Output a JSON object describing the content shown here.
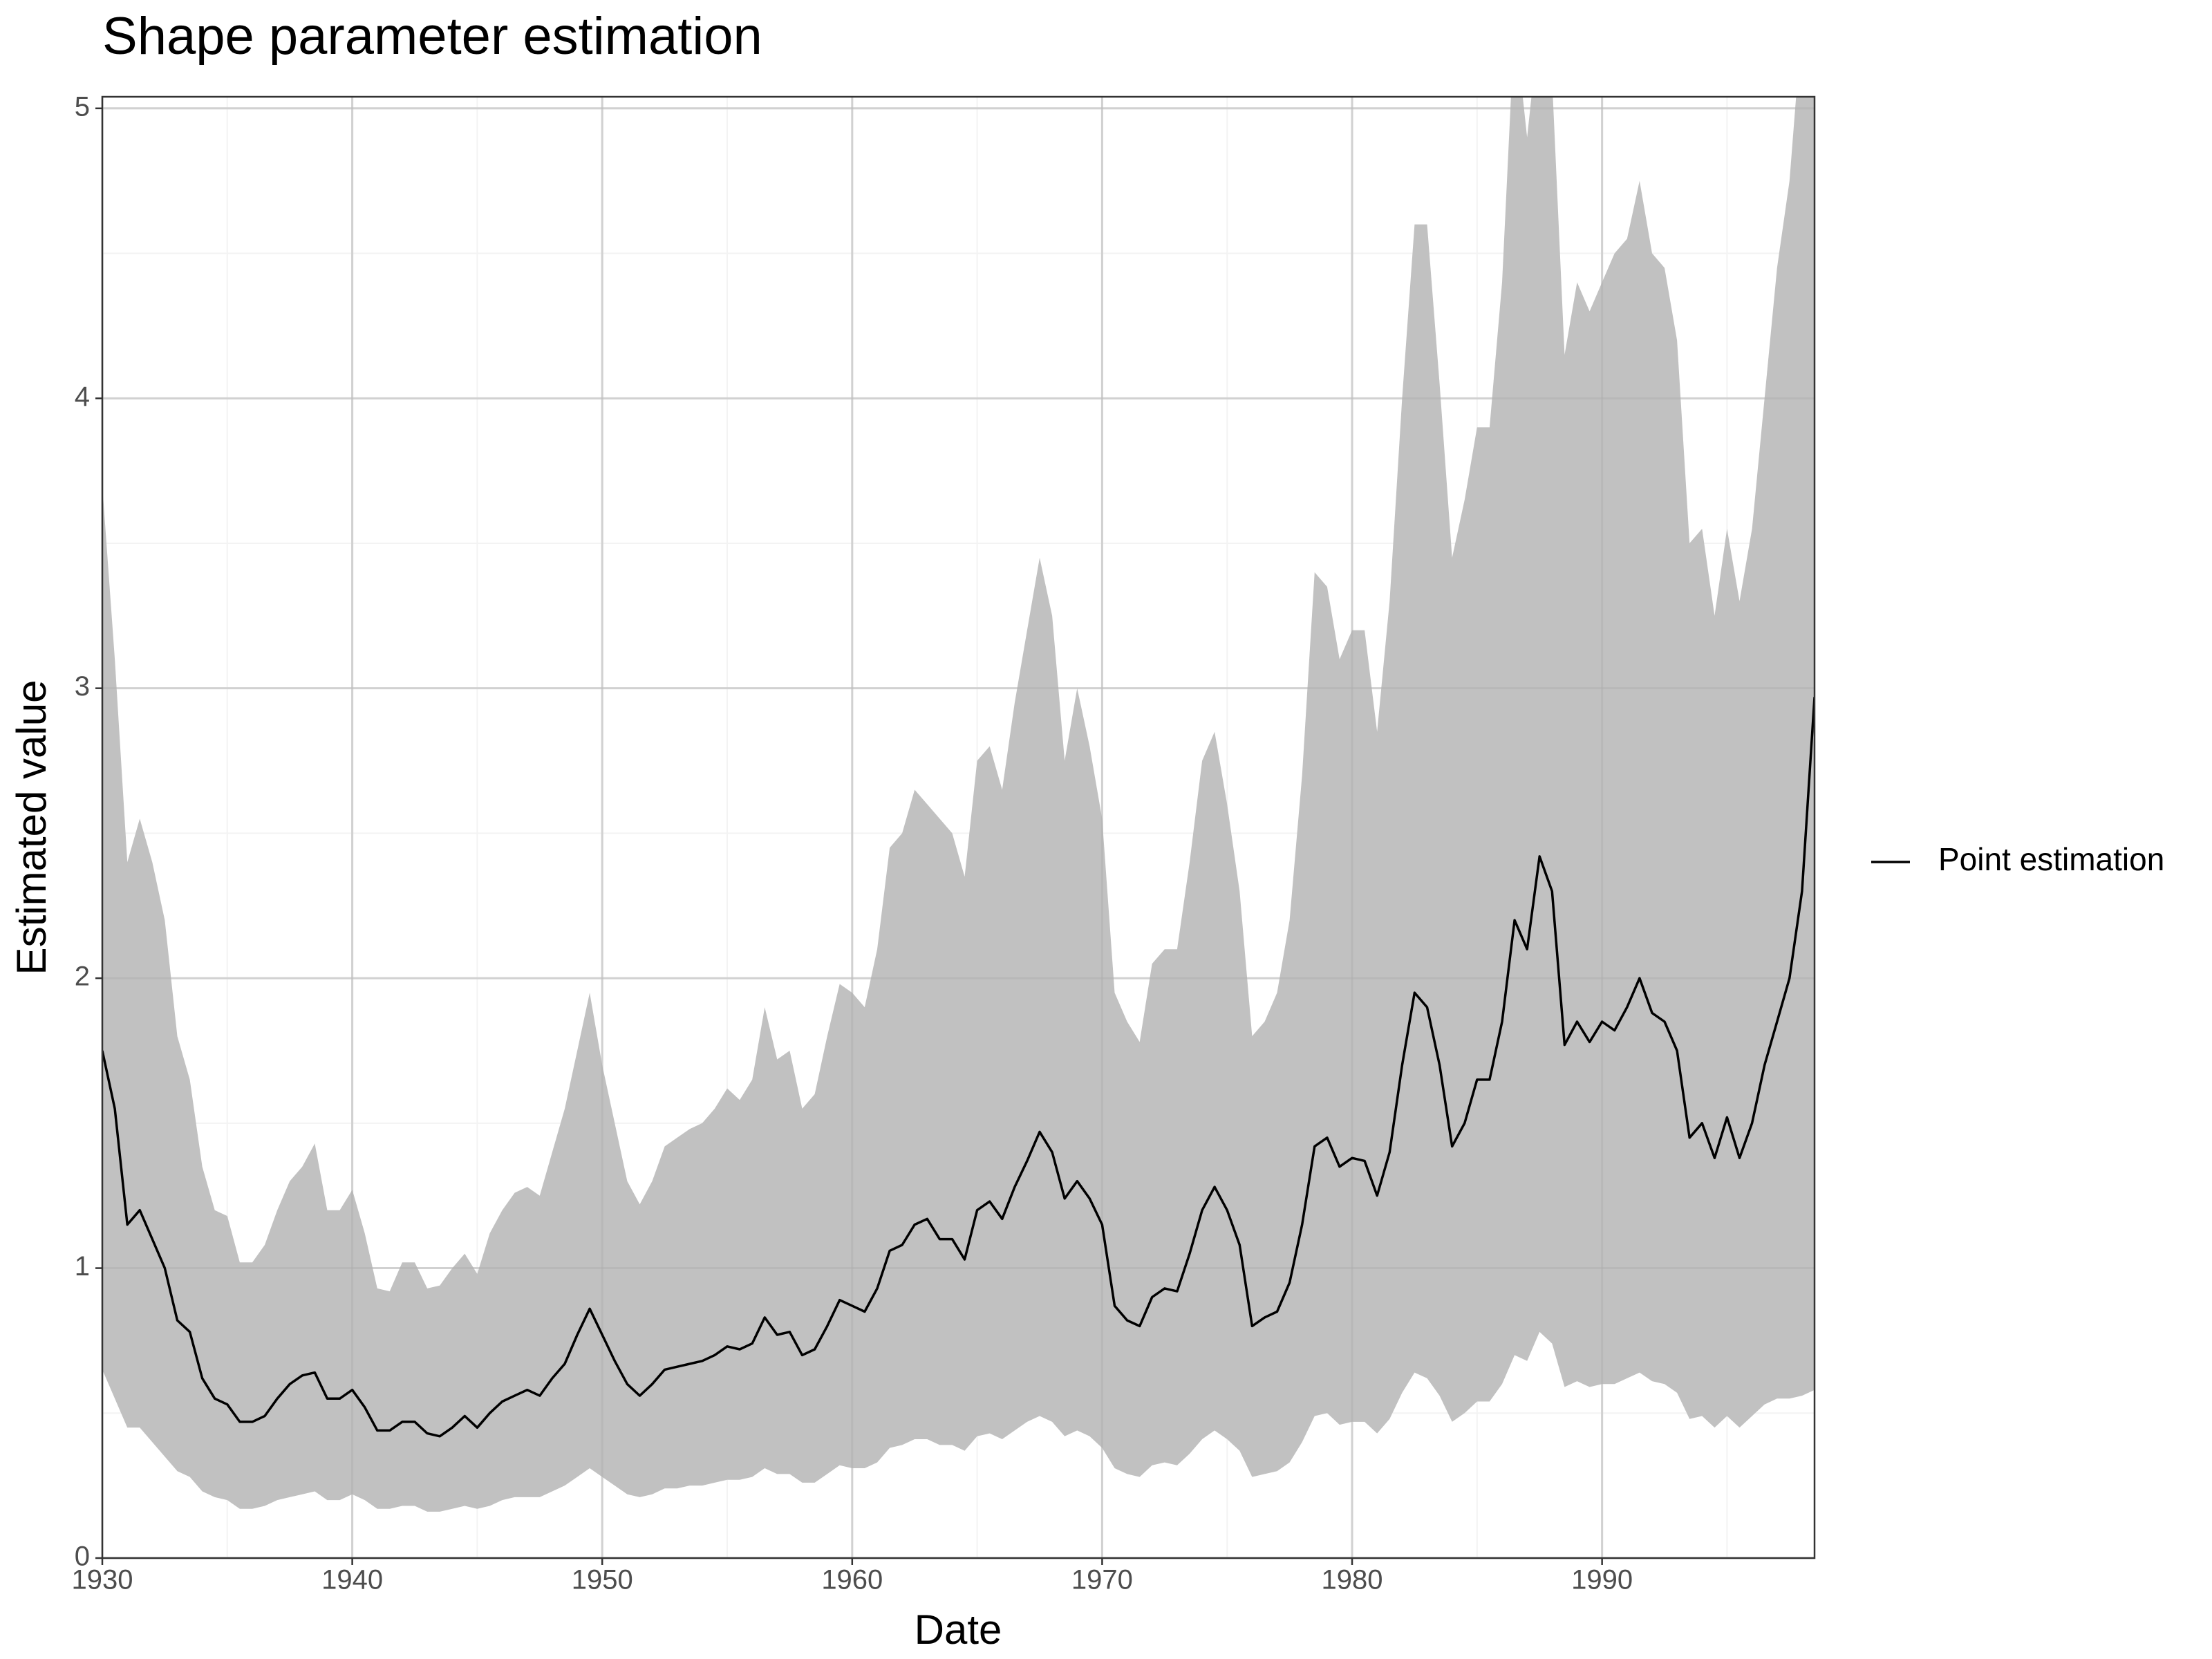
{
  "chart_data": {
    "type": "line",
    "title": "Shape parameter estimation",
    "x_label": "Date",
    "y_label": "Estimated value",
    "xlim": [
      1930,
      1998.5
    ],
    "ylim": [
      0,
      5.04
    ],
    "xticks": [
      1930,
      1940,
      1950,
      1960,
      1970,
      1980,
      1990
    ],
    "yticks": [
      0,
      1,
      2,
      3,
      4,
      5
    ],
    "grid": true,
    "legend": "right",
    "x": [
      1930,
      1930.5,
      1931,
      1931.5,
      1932,
      1932.5,
      1933,
      1933.5,
      1934,
      1934.5,
      1935,
      1935.5,
      1936,
      1936.5,
      1937,
      1937.5,
      1938,
      1938.5,
      1939,
      1939.5,
      1940,
      1940.5,
      1941,
      1941.5,
      1942,
      1942.5,
      1943,
      1943.5,
      1944,
      1944.5,
      1945,
      1945.5,
      1946,
      1946.5,
      1947,
      1947.5,
      1948,
      1948.5,
      1949,
      1949.5,
      1950,
      1950.5,
      1951,
      1951.5,
      1952,
      1952.5,
      1953,
      1953.5,
      1954,
      1954.5,
      1955,
      1955.5,
      1956,
      1956.5,
      1957,
      1957.5,
      1958,
      1958.5,
      1959,
      1959.5,
      1960,
      1960.5,
      1961,
      1961.5,
      1962,
      1962.5,
      1963,
      1963.5,
      1964,
      1964.5,
      1965,
      1965.5,
      1966,
      1966.5,
      1967,
      1967.5,
      1968,
      1968.5,
      1969,
      1969.5,
      1970,
      1970.5,
      1971,
      1971.5,
      1972,
      1972.5,
      1973,
      1973.5,
      1974,
      1974.5,
      1975,
      1975.5,
      1976,
      1976.5,
      1977,
      1977.5,
      1978,
      1978.5,
      1979,
      1979.5,
      1980,
      1980.5,
      1981,
      1981.5,
      1982,
      1982.5,
      1983,
      1983.5,
      1984,
      1984.5,
      1985,
      1985.5,
      1986,
      1986.5,
      1987,
      1987.5,
      1988,
      1988.5,
      1989,
      1989.5,
      1990,
      1990.5,
      1991,
      1991.5,
      1992,
      1992.5,
      1993,
      1993.5,
      1994,
      1994.5,
      1995,
      1995.5,
      1996,
      1996.5,
      1997,
      1997.5,
      1998,
      1998.5
    ],
    "ribbon": {
      "color": "#bebebe",
      "lower": [
        0.65,
        0.55,
        0.45,
        0.45,
        0.4,
        0.35,
        0.3,
        0.28,
        0.23,
        0.21,
        0.2,
        0.17,
        0.17,
        0.18,
        0.2,
        0.21,
        0.22,
        0.23,
        0.2,
        0.2,
        0.22,
        0.2,
        0.17,
        0.17,
        0.18,
        0.18,
        0.16,
        0.16,
        0.17,
        0.18,
        0.17,
        0.18,
        0.2,
        0.21,
        0.21,
        0.21,
        0.23,
        0.25,
        0.28,
        0.31,
        0.28,
        0.25,
        0.22,
        0.21,
        0.22,
        0.24,
        0.24,
        0.25,
        0.25,
        0.26,
        0.27,
        0.27,
        0.28,
        0.31,
        0.29,
        0.29,
        0.26,
        0.26,
        0.29,
        0.32,
        0.31,
        0.31,
        0.33,
        0.38,
        0.39,
        0.41,
        0.41,
        0.39,
        0.39,
        0.37,
        0.42,
        0.43,
        0.41,
        0.44,
        0.47,
        0.49,
        0.47,
        0.42,
        0.44,
        0.42,
        0.38,
        0.31,
        0.29,
        0.28,
        0.32,
        0.33,
        0.32,
        0.36,
        0.41,
        0.44,
        0.41,
        0.37,
        0.28,
        0.29,
        0.3,
        0.33,
        0.4,
        0.49,
        0.5,
        0.46,
        0.47,
        0.47,
        0.43,
        0.48,
        0.57,
        0.64,
        0.62,
        0.56,
        0.47,
        0.5,
        0.54,
        0.54,
        0.6,
        0.7,
        0.68,
        0.78,
        0.74,
        0.59,
        0.61,
        0.59,
        0.6,
        0.6,
        0.62,
        0.64,
        0.61,
        0.6,
        0.57,
        0.48,
        0.49,
        0.45,
        0.49,
        0.45,
        0.49,
        0.53,
        0.55,
        0.55,
        0.56,
        0.58
      ],
      "upper": [
        3.7,
        3.1,
        2.4,
        2.55,
        2.4,
        2.2,
        1.8,
        1.65,
        1.35,
        1.2,
        1.18,
        1.02,
        1.02,
        1.08,
        1.2,
        1.3,
        1.35,
        1.43,
        1.2,
        1.2,
        1.27,
        1.12,
        0.93,
        0.92,
        1.02,
        1.02,
        0.93,
        0.94,
        1.0,
        1.05,
        0.98,
        1.12,
        1.2,
        1.26,
        1.28,
        1.25,
        1.4,
        1.55,
        1.75,
        1.95,
        1.7,
        1.5,
        1.3,
        1.22,
        1.3,
        1.42,
        1.45,
        1.48,
        1.5,
        1.55,
        1.62,
        1.58,
        1.65,
        1.9,
        1.72,
        1.75,
        1.55,
        1.6,
        1.8,
        1.98,
        1.95,
        1.9,
        2.1,
        2.45,
        2.5,
        2.65,
        2.6,
        2.55,
        2.5,
        2.35,
        2.75,
        2.8,
        2.65,
        2.95,
        3.2,
        3.45,
        3.25,
        2.75,
        3.0,
        2.8,
        2.55,
        1.95,
        1.85,
        1.78,
        2.05,
        2.1,
        2.1,
        2.4,
        2.75,
        2.85,
        2.6,
        2.3,
        1.8,
        1.85,
        1.95,
        2.2,
        2.7,
        3.4,
        3.35,
        3.1,
        3.2,
        3.2,
        2.85,
        3.3,
        4.0,
        4.6,
        4.6,
        4.05,
        3.45,
        3.65,
        3.9,
        3.9,
        4.4,
        5.3,
        4.9,
        5.3,
        5.1,
        4.15,
        4.4,
        4.3,
        4.4,
        4.5,
        4.55,
        4.75,
        4.5,
        4.45,
        4.2,
        3.5,
        3.55,
        3.25,
        3.55,
        3.3,
        3.55,
        4.0,
        4.45,
        4.75,
        5.3,
        5.5
      ]
    },
    "series": [
      {
        "name": "Point estimation",
        "color": "#000000",
        "values": [
          1.75,
          1.55,
          1.15,
          1.2,
          1.1,
          1.0,
          0.82,
          0.78,
          0.62,
          0.55,
          0.53,
          0.47,
          0.47,
          0.49,
          0.55,
          0.6,
          0.63,
          0.64,
          0.55,
          0.55,
          0.58,
          0.52,
          0.44,
          0.44,
          0.47,
          0.47,
          0.43,
          0.42,
          0.45,
          0.49,
          0.45,
          0.5,
          0.54,
          0.56,
          0.58,
          0.56,
          0.62,
          0.67,
          0.77,
          0.86,
          0.77,
          0.68,
          0.6,
          0.56,
          0.6,
          0.65,
          0.66,
          0.67,
          0.68,
          0.7,
          0.73,
          0.72,
          0.74,
          0.83,
          0.77,
          0.78,
          0.7,
          0.72,
          0.8,
          0.89,
          0.87,
          0.85,
          0.93,
          1.06,
          1.08,
          1.15,
          1.17,
          1.1,
          1.1,
          1.03,
          1.2,
          1.23,
          1.17,
          1.28,
          1.37,
          1.47,
          1.4,
          1.24,
          1.3,
          1.24,
          1.15,
          0.87,
          0.82,
          0.8,
          0.9,
          0.93,
          0.92,
          1.05,
          1.2,
          1.28,
          1.2,
          1.08,
          0.8,
          0.83,
          0.85,
          0.95,
          1.15,
          1.42,
          1.45,
          1.35,
          1.38,
          1.37,
          1.25,
          1.4,
          1.7,
          1.95,
          1.9,
          1.7,
          1.42,
          1.5,
          1.65,
          1.65,
          1.85,
          2.2,
          2.1,
          2.42,
          2.3,
          1.77,
          1.85,
          1.78,
          1.85,
          1.82,
          1.9,
          2.0,
          1.88,
          1.85,
          1.75,
          1.45,
          1.5,
          1.38,
          1.52,
          1.38,
          1.5,
          1.7,
          1.85,
          2.0,
          2.3,
          2.97
        ]
      }
    ]
  }
}
